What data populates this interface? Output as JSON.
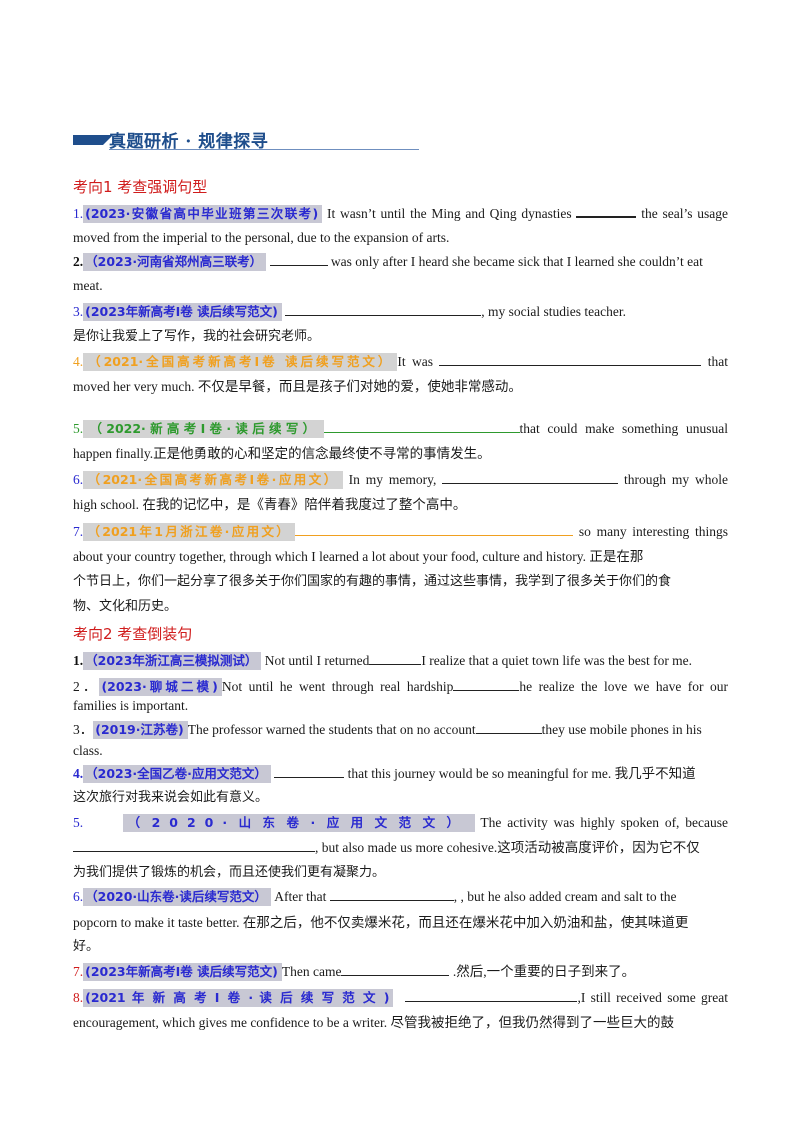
{
  "section_title": "真题研析 · 规律探寻",
  "category1": "考向1  考查强调句型",
  "category2": "考向2  考查倒装句",
  "items": {
    "i1": {
      "num": "1.",
      "src": "(2023·安徽省高中毕业班第三次联考)",
      "l1a": " It wasn’t until the Ming and Qing dynasties ",
      "l1b": " the seal’s usage",
      "l2": "moved from the imperial to the personal, due to the expansion  of arts."
    },
    "i2": {
      "num": "2.",
      "src": "（2023·河南省郑州高三联考）",
      "l1b": " was only after I heard she became sick that I learned she couldn’t eat",
      "l2": "meat."
    },
    "i3": {
      "num": "3.",
      "src": "(2023年新高考Ⅰ卷 读后续写范文)",
      "l1b": ", my social studies teacher.",
      "l2": "是你让我爱上了写作，我的社会研究老师。"
    },
    "i4": {
      "num": "4.",
      "src": "（2021·全国高考新高考Ⅰ卷 读后续写范文）",
      "l1a": "It  was ",
      "l1b": " that",
      "l2": "moved  her  very  much. 不仅是早餐，而且是孩子们对她的爱，使她非常感动。"
    },
    "i5": {
      "num": "5.",
      "src": "（2022·新高考Ⅰ卷·读后续写）",
      "l1b": "that  could  make  something  unusual",
      "l2": "happen  finally.正是他勇敢的心和坚定的信念最终使不寻常的事情发生。"
    },
    "i6": {
      "num": "6.",
      "src": "（2021·全国高考新高考Ⅰ卷·应用文）",
      "l1a": " In  my  memory, ",
      "l1b": " through  my  whole",
      "l2": "high  school. 在我的记忆中，是《青春》陪伴着我度过了整个高中。"
    },
    "i7": {
      "num": "7.",
      "src": "（2021年1月浙江卷·应用文）",
      "l1b": " so  many  interesting  things",
      "l2": "about  your  country  together,  through  which  I  learned  a  lot  about  your  food,  culture  and  history. 正是在那",
      "l3": "个节日上，你们一起分享了很多关于你们国家的有趣的事情，通过这些事情，我学到了很多关于你们的食",
      "l4": "物、文化和历史。"
    },
    "j1": {
      "num": "1.",
      "src": "（2023年浙江高三模拟测试）",
      "l1a": " Not until I returned",
      "l1b": "I realize that a quiet town life was the best for me."
    },
    "j2": {
      "num": "2．",
      "src": "(2023·聊城二模)",
      "l1a": "Not  until  he  went  through  real  hardship",
      "l1b": "he  realize  the  love  we  have  for  our",
      "l2": "families is important."
    },
    "j3": {
      "num": "3．",
      "src": "(2019·江苏卷)",
      "l1a": "The professor warned the students that on no account",
      "l1b": "they use mobile phones in his",
      "l2": "class."
    },
    "j4": {
      "num": "4.",
      "src": "（2023·全国乙卷·应用文范文）",
      "l1b": "  that this journey would be so meaningful for me.  我几乎不知道",
      "l2": "这次旅行对我来说会如此有意义。"
    },
    "j5": {
      "num": "5.",
      "src": "（2020·山东卷·应用文范文）",
      "l1a": " The  activity  was  highly  spoken  of,  because",
      "l2b": ", but also made us more cohesive.这项活动被高度评价，因为它不仅",
      "l3": "为我们提供了锻炼的机会，而且还使我们更有凝聚力。"
    },
    "j6": {
      "num": "6.",
      "src": "（2020·山东卷·读后续写范文）",
      "l1a": " After that ",
      "l1b": ", , but he also added cream and salt to the",
      "l2": "popcorn to make it taste better.  在那之后，他不仅卖爆米花，而且还在爆米花中加入奶油和盐，使其味道更",
      "l3": "好。"
    },
    "j7": {
      "num": "7.",
      "src": "(2023年新高考Ⅰ卷 读后续写范文)",
      "l1a": "Then  came",
      "l1b": " .然后,一个重要的日子到来了。"
    },
    "j8": {
      "num": "8.",
      "src": "(2021 年 新 高 考 Ⅰ 卷 · 读 后 续 写 范 文 )",
      "l1b": ",I  still  received  some  great",
      "l2": "encouragement,  which  gives  me  confidence  to  be  a  writer. 尽管我被拒绝了，但我仍然得到了一些巨大的鼓"
    }
  }
}
